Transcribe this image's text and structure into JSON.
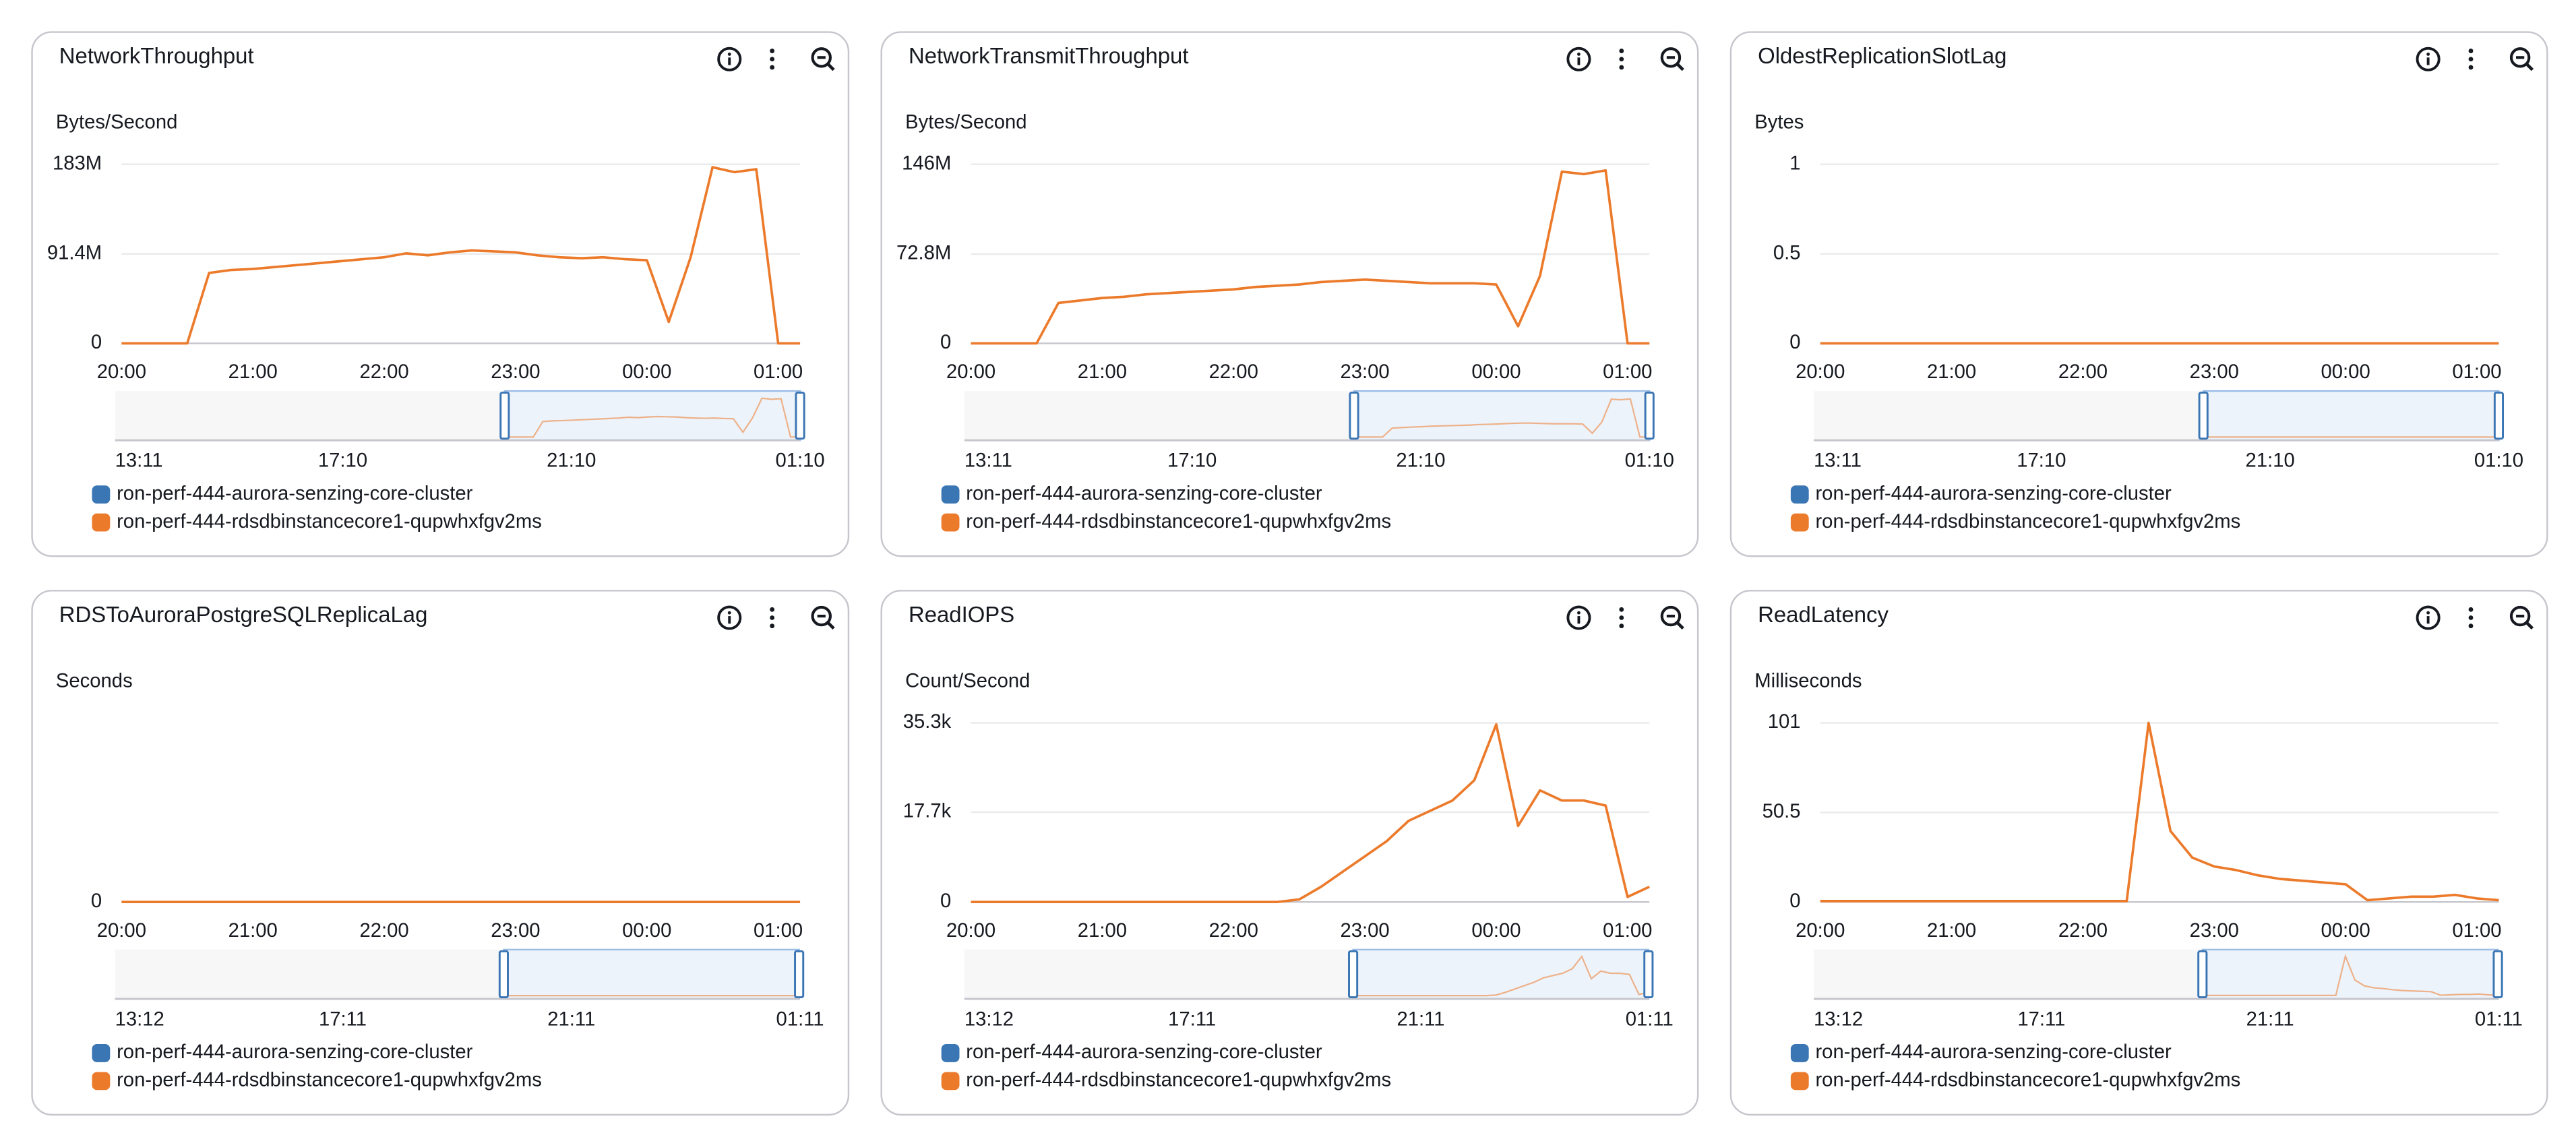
{
  "chart_data": [
    {
      "type": "line",
      "title": "NetworkThroughput",
      "y_label": "Bytes/Second",
      "x": [
        "20:00",
        "20:10",
        "20:20",
        "20:30",
        "20:40",
        "20:50",
        "21:00",
        "21:10",
        "21:20",
        "21:30",
        "21:40",
        "21:50",
        "22:00",
        "22:10",
        "22:20",
        "22:30",
        "22:40",
        "22:50",
        "23:00",
        "23:10",
        "23:20",
        "23:30",
        "23:40",
        "23:50",
        "00:00",
        "00:10",
        "00:20",
        "00:30",
        "00:40",
        "00:50",
        "01:00",
        "01:10"
      ],
      "xticks": [
        "20:00",
        "21:00",
        "22:00",
        "23:00",
        "00:00",
        "01:00"
      ],
      "overview_xticks": [
        "13:11",
        "17:10",
        "21:10",
        "01:10"
      ],
      "ylim": [
        0,
        183000000
      ],
      "yticks": [
        0,
        {
          "value": 91400000,
          "label": "91.4M"
        },
        {
          "value": 183000000,
          "label": "183M"
        }
      ],
      "grid": true,
      "series": [
        {
          "name": "ron-perf-444-aurora-senzing-core-cluster",
          "color": "#3a75b4",
          "values": [
            null,
            null,
            null,
            null,
            null,
            null,
            null,
            null,
            null,
            null,
            null,
            null,
            null,
            null,
            null,
            null,
            null,
            null,
            null,
            null,
            null,
            null,
            null,
            null,
            null,
            null,
            null,
            null,
            null,
            null,
            null,
            null
          ]
        },
        {
          "name": "ron-perf-444-rdsdbinstancecore1-qupwhxfgv2ms",
          "color": "#ec7a2b",
          "values": [
            0,
            0,
            0,
            0,
            72000000,
            75000000,
            76000000,
            78000000,
            80000000,
            82000000,
            84000000,
            86000000,
            88000000,
            92000000,
            90000000,
            93000000,
            95000000,
            94000000,
            93000000,
            90000000,
            88000000,
            87000000,
            88000000,
            86000000,
            85000000,
            22000000,
            88000000,
            180000000,
            175000000,
            178000000,
            0,
            0
          ]
        }
      ]
    },
    {
      "type": "line",
      "title": "NetworkTransmitThroughput",
      "y_label": "Bytes/Second",
      "x": [
        "20:00",
        "20:10",
        "20:20",
        "20:30",
        "20:40",
        "20:50",
        "21:00",
        "21:10",
        "21:20",
        "21:30",
        "21:40",
        "21:50",
        "22:00",
        "22:10",
        "22:20",
        "22:30",
        "22:40",
        "22:50",
        "23:00",
        "23:10",
        "23:20",
        "23:30",
        "23:40",
        "23:50",
        "00:00",
        "00:10",
        "00:20",
        "00:30",
        "00:40",
        "00:50",
        "01:00",
        "01:10"
      ],
      "xticks": [
        "20:00",
        "21:00",
        "22:00",
        "23:00",
        "00:00",
        "01:00"
      ],
      "overview_xticks": [
        "13:11",
        "17:10",
        "21:10",
        "01:10"
      ],
      "ylim": [
        0,
        146000000
      ],
      "yticks": [
        0,
        {
          "value": 72800000,
          "label": "72.8M"
        },
        {
          "value": 146000000,
          "label": "146M"
        }
      ],
      "grid": true,
      "series": [
        {
          "name": "ron-perf-444-aurora-senzing-core-cluster",
          "color": "#3a75b4",
          "values": [
            null,
            null,
            null,
            null,
            null,
            null,
            null,
            null,
            null,
            null,
            null,
            null,
            null,
            null,
            null,
            null,
            null,
            null,
            null,
            null,
            null,
            null,
            null,
            null,
            null,
            null,
            null,
            null,
            null,
            null,
            null,
            null
          ]
        },
        {
          "name": "ron-perf-444-rdsdbinstancecore1-qupwhxfgv2ms",
          "color": "#ec7a2b",
          "values": [
            0,
            0,
            0,
            0,
            33000000,
            35000000,
            37000000,
            38000000,
            40000000,
            41000000,
            42000000,
            43000000,
            44000000,
            46000000,
            47000000,
            48000000,
            50000000,
            51000000,
            52000000,
            51000000,
            50000000,
            49000000,
            49000000,
            49000000,
            48000000,
            14000000,
            55000000,
            140000000,
            138000000,
            141000000,
            0,
            0
          ]
        }
      ]
    },
    {
      "type": "line",
      "title": "OldestReplicationSlotLag",
      "y_label": "Bytes",
      "x": [
        "20:00",
        "20:10",
        "20:20",
        "20:30",
        "20:40",
        "20:50",
        "21:00",
        "21:10",
        "21:20",
        "21:30",
        "21:40",
        "21:50",
        "22:00",
        "22:10",
        "22:20",
        "22:30",
        "22:40",
        "22:50",
        "23:00",
        "23:10",
        "23:20",
        "23:30",
        "23:40",
        "23:50",
        "00:00",
        "00:10",
        "00:20",
        "00:30",
        "00:40",
        "00:50",
        "01:00",
        "01:10"
      ],
      "xticks": [
        "20:00",
        "21:00",
        "22:00",
        "23:00",
        "00:00",
        "01:00"
      ],
      "overview_xticks": [
        "13:11",
        "17:10",
        "21:10",
        "01:10"
      ],
      "ylim": [
        0,
        1
      ],
      "yticks": [
        0,
        0.5,
        1
      ],
      "grid": true,
      "series": [
        {
          "name": "ron-perf-444-aurora-senzing-core-cluster",
          "color": "#3a75b4",
          "values": [
            null,
            null,
            null,
            null,
            null,
            null,
            null,
            null,
            null,
            null,
            null,
            null,
            null,
            null,
            null,
            null,
            null,
            null,
            null,
            null,
            null,
            null,
            null,
            null,
            null,
            null,
            null,
            null,
            null,
            null,
            null,
            null
          ]
        },
        {
          "name": "ron-perf-444-rdsdbinstancecore1-qupwhxfgv2ms",
          "color": "#ec7a2b",
          "values": [
            0,
            0,
            0,
            0,
            0,
            0,
            0,
            0,
            0,
            0,
            0,
            0,
            0,
            0,
            0,
            0,
            0,
            0,
            0,
            0,
            0,
            0,
            0,
            0,
            0,
            0,
            0,
            0,
            0,
            0,
            0,
            0
          ]
        }
      ]
    },
    {
      "type": "line",
      "title": "RDSToAuroraPostgreSQLReplicaLag",
      "y_label": "Seconds",
      "x": [
        "20:00",
        "20:10",
        "20:20",
        "20:30",
        "20:40",
        "20:50",
        "21:00",
        "21:10",
        "21:20",
        "21:30",
        "21:40",
        "21:50",
        "22:00",
        "22:10",
        "22:20",
        "22:30",
        "22:40",
        "22:50",
        "23:00",
        "23:10",
        "23:20",
        "23:30",
        "23:40",
        "23:50",
        "00:00",
        "00:10",
        "00:20",
        "00:30",
        "00:40",
        "00:50",
        "01:00",
        "01:10"
      ],
      "xticks": [
        "20:00",
        "21:00",
        "22:00",
        "23:00",
        "00:00",
        "01:00"
      ],
      "overview_xticks": [
        "13:12",
        "17:11",
        "21:11",
        "01:11"
      ],
      "ylim": [
        0,
        1
      ],
      "yticks": [
        0
      ],
      "grid": true,
      "series": [
        {
          "name": "ron-perf-444-aurora-senzing-core-cluster",
          "color": "#3a75b4",
          "values": [
            null,
            null,
            null,
            null,
            null,
            null,
            null,
            null,
            null,
            null,
            null,
            null,
            null,
            null,
            null,
            null,
            null,
            null,
            null,
            null,
            null,
            null,
            null,
            null,
            null,
            null,
            null,
            null,
            null,
            null,
            null,
            null
          ]
        },
        {
          "name": "ron-perf-444-rdsdbinstancecore1-qupwhxfgv2ms",
          "color": "#ec7a2b",
          "values": [
            0,
            0,
            0,
            0,
            0,
            0,
            0,
            0,
            0,
            0,
            0,
            0,
            0,
            0,
            0,
            0,
            0,
            0,
            0,
            0,
            0,
            0,
            0,
            0,
            0,
            0,
            0,
            0,
            0,
            0,
            0,
            0
          ]
        }
      ]
    },
    {
      "type": "line",
      "title": "ReadIOPS",
      "y_label": "Count/Second",
      "x": [
        "20:00",
        "20:10",
        "20:20",
        "20:30",
        "20:40",
        "20:50",
        "21:00",
        "21:10",
        "21:20",
        "21:30",
        "21:40",
        "21:50",
        "22:00",
        "22:10",
        "22:20",
        "22:30",
        "22:40",
        "22:50",
        "23:00",
        "23:10",
        "23:20",
        "23:30",
        "23:40",
        "23:50",
        "00:00",
        "00:10",
        "00:20",
        "00:30",
        "00:40",
        "00:50",
        "01:00",
        "01:10"
      ],
      "xticks": [
        "20:00",
        "21:00",
        "22:00",
        "23:00",
        "00:00",
        "01:00"
      ],
      "overview_xticks": [
        "13:12",
        "17:11",
        "21:11",
        "01:11"
      ],
      "ylim": [
        0,
        35300
      ],
      "yticks": [
        0,
        {
          "value": 17700,
          "label": "17.7k"
        },
        {
          "value": 35300,
          "label": "35.3k"
        }
      ],
      "grid": true,
      "series": [
        {
          "name": "ron-perf-444-aurora-senzing-core-cluster",
          "color": "#3a75b4",
          "values": [
            null,
            null,
            null,
            null,
            null,
            null,
            null,
            null,
            null,
            null,
            null,
            null,
            null,
            null,
            null,
            null,
            null,
            null,
            null,
            null,
            null,
            null,
            null,
            null,
            null,
            null,
            null,
            null,
            null,
            null,
            null,
            null
          ]
        },
        {
          "name": "ron-perf-444-rdsdbinstancecore1-qupwhxfgv2ms",
          "color": "#ec7a2b",
          "values": [
            0,
            0,
            0,
            0,
            0,
            0,
            0,
            0,
            0,
            0,
            0,
            0,
            0,
            0,
            0,
            500,
            3000,
            6000,
            9000,
            12000,
            16000,
            18000,
            20000,
            24000,
            35000,
            15000,
            22000,
            20000,
            20000,
            19000,
            1000,
            3000
          ]
        }
      ]
    },
    {
      "type": "line",
      "title": "ReadLatency",
      "y_label": "Milliseconds",
      "x": [
        "20:00",
        "20:10",
        "20:20",
        "20:30",
        "20:40",
        "20:50",
        "21:00",
        "21:10",
        "21:20",
        "21:30",
        "21:40",
        "21:50",
        "22:00",
        "22:10",
        "22:20",
        "22:30",
        "22:40",
        "22:50",
        "23:00",
        "23:10",
        "23:20",
        "23:30",
        "23:40",
        "23:50",
        "00:00",
        "00:10",
        "00:20",
        "00:30",
        "00:40",
        "00:50",
        "01:00",
        "01:10"
      ],
      "xticks": [
        "20:00",
        "21:00",
        "22:00",
        "23:00",
        "00:00",
        "01:00"
      ],
      "overview_xticks": [
        "13:12",
        "17:11",
        "21:11",
        "01:11"
      ],
      "ylim": [
        0,
        101
      ],
      "yticks": [
        0,
        50.5,
        101
      ],
      "grid": true,
      "series": [
        {
          "name": "ron-perf-444-aurora-senzing-core-cluster",
          "color": "#3a75b4",
          "values": [
            null,
            null,
            null,
            null,
            null,
            null,
            null,
            null,
            null,
            null,
            null,
            null,
            null,
            null,
            null,
            null,
            null,
            null,
            null,
            null,
            null,
            null,
            null,
            null,
            null,
            null,
            null,
            null,
            null,
            null,
            null,
            null
          ]
        },
        {
          "name": "ron-perf-444-rdsdbinstancecore1-qupwhxfgv2ms",
          "color": "#ec7a2b",
          "values": [
            0.5,
            0.5,
            0.5,
            0.5,
            0.5,
            0.5,
            0.5,
            0.5,
            0.5,
            0.5,
            0.5,
            0.5,
            0.5,
            0.5,
            0.5,
            101,
            40,
            25,
            20,
            18,
            15,
            13,
            12,
            11,
            10,
            1,
            2,
            3,
            3,
            4,
            2,
            1
          ]
        }
      ]
    }
  ]
}
